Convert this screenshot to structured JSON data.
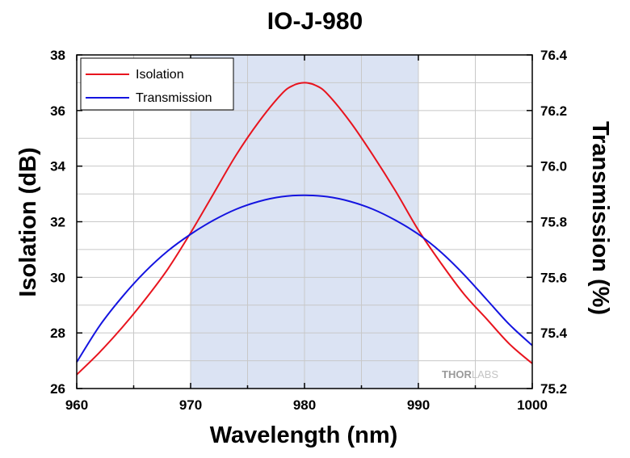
{
  "chart_data": {
    "type": "line",
    "title": "IO-J-980",
    "xlabel": "Wavelength (nm)",
    "ylabel": "Isolation (dB)",
    "y2label": "Transmission (%)",
    "xlim": [
      960,
      1000
    ],
    "ylim": [
      26,
      38
    ],
    "y2lim": [
      75.2,
      76.4
    ],
    "x_ticks": [
      960,
      970,
      980,
      990,
      1000
    ],
    "x_tick_labels": [
      "960",
      "970",
      "980",
      "990",
      "1000"
    ],
    "y_ticks": [
      26,
      28,
      30,
      32,
      34,
      36,
      38
    ],
    "y_tick_labels": [
      "26",
      "28",
      "30",
      "32",
      "34",
      "36",
      "38"
    ],
    "y2_ticks": [
      75.2,
      75.4,
      75.6,
      75.8,
      76.0,
      76.2,
      76.4
    ],
    "y2_tick_labels": [
      "75.2",
      "75.4",
      "75.6",
      "75.8",
      "76.0",
      "76.2",
      "76.4"
    ],
    "grid": true,
    "legend_position": "top-left",
    "shaded_band": {
      "x_range": [
        970,
        990
      ],
      "color": "#dbe3f3"
    },
    "series": [
      {
        "name": "Isolation",
        "axis": "left",
        "color": "#e8141e",
        "x": [
          960,
          962,
          964,
          966,
          968,
          970,
          972,
          974,
          976,
          978,
          979,
          980,
          981,
          982,
          984,
          986,
          988,
          990,
          992,
          994,
          996,
          998,
          1000
        ],
        "y": [
          26.5,
          27.3,
          28.2,
          29.2,
          30.3,
          31.6,
          33.0,
          34.4,
          35.6,
          36.6,
          36.9,
          37.0,
          36.9,
          36.6,
          35.6,
          34.4,
          33.1,
          31.7,
          30.5,
          29.4,
          28.5,
          27.6,
          26.9
        ]
      },
      {
        "name": "Transmission",
        "axis": "right",
        "color": "#1414e0",
        "x": [
          960,
          962,
          964,
          966,
          968,
          970,
          972,
          974,
          976,
          978,
          980,
          982,
          984,
          986,
          988,
          990,
          992,
          994,
          996,
          998,
          1000
        ],
        "y": [
          75.295,
          75.425,
          75.53,
          75.62,
          75.695,
          75.755,
          75.805,
          75.845,
          75.873,
          75.89,
          75.895,
          75.89,
          75.873,
          75.845,
          75.805,
          75.755,
          75.69,
          75.61,
          75.52,
          75.43,
          75.355
        ]
      }
    ]
  },
  "watermark": {
    "thor": "THOR",
    "labs": "LABS"
  }
}
